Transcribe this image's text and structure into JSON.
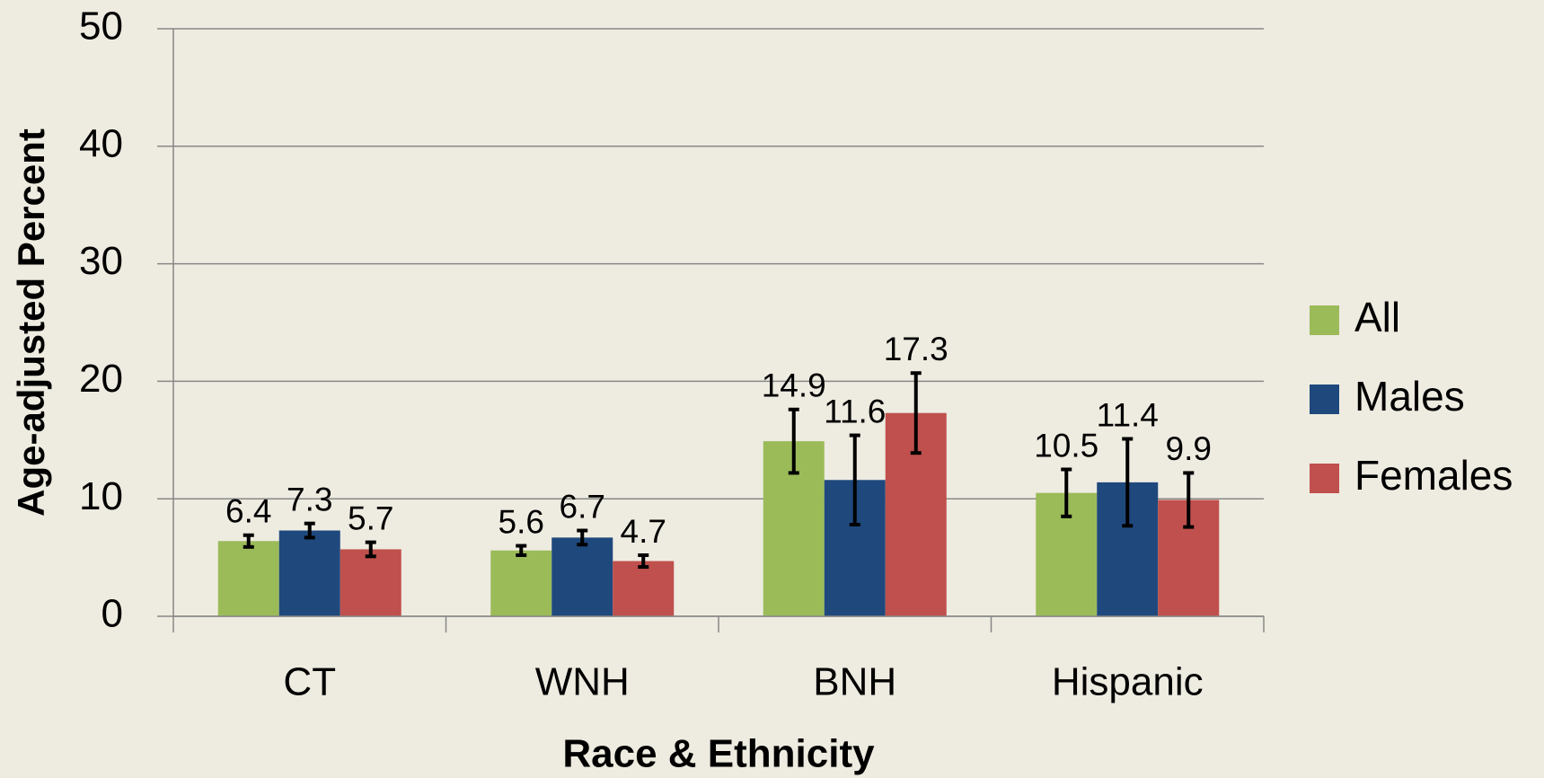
{
  "chart_data": {
    "type": "bar",
    "x_label": "Race & Ethnicity",
    "y_label": "Age-adjusted Percent",
    "categories": [
      "CT",
      "WNH",
      "BNH",
      "Hispanic"
    ],
    "series": [
      {
        "name": "All",
        "color": "#9bbb59",
        "values": [
          6.4,
          5.6,
          14.9,
          10.5
        ],
        "errors": [
          0.5,
          0.4,
          2.7,
          2.0
        ]
      },
      {
        "name": "Males",
        "color": "#1f497d",
        "values": [
          7.3,
          6.7,
          11.6,
          11.4
        ],
        "errors": [
          0.6,
          0.6,
          3.8,
          3.7
        ]
      },
      {
        "name": "Females",
        "color": "#c0504d",
        "values": [
          5.7,
          4.7,
          17.3,
          9.9
        ],
        "errors": [
          0.6,
          0.5,
          3.4,
          2.3
        ]
      }
    ],
    "ylim": [
      0,
      50
    ],
    "yticks": [
      0,
      10,
      20,
      30,
      40,
      50
    ],
    "grid": true,
    "legend": "right"
  }
}
